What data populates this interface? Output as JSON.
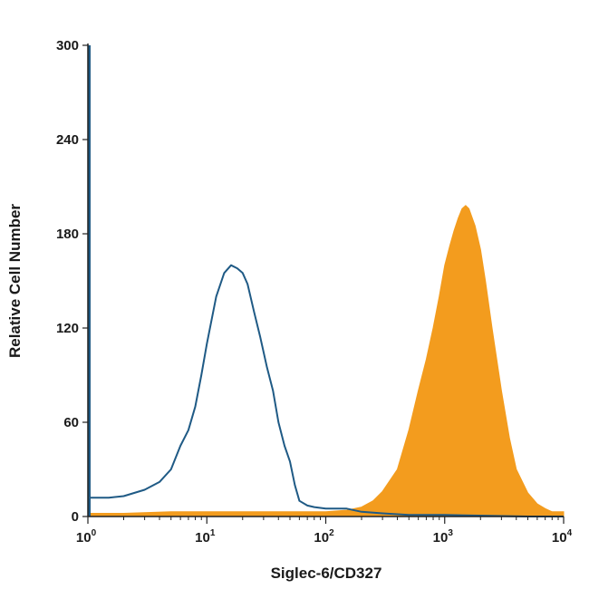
{
  "chart_data": {
    "type": "area",
    "title": "",
    "xlabel": "Siglec-6/CD327",
    "ylabel": "Relative Cell Number",
    "xscale": "log",
    "xlim": [
      1,
      10000
    ],
    "ylim": [
      0,
      300
    ],
    "grid": false,
    "legend": "none",
    "x_ticks": [
      {
        "value": 1,
        "base": "10",
        "exp": "0"
      },
      {
        "value": 10,
        "base": "10",
        "exp": "1"
      },
      {
        "value": 100,
        "base": "10",
        "exp": "2"
      },
      {
        "value": 1000,
        "base": "10",
        "exp": "3"
      },
      {
        "value": 10000,
        "base": "10",
        "exp": "4"
      }
    ],
    "y_ticks": [
      "0",
      "60",
      "120",
      "180",
      "240",
      "300"
    ],
    "series": [
      {
        "style": "filled",
        "color": "#f39c1e",
        "x": [
          1,
          2,
          5,
          10,
          30,
          100,
          150,
          200,
          250,
          300,
          400,
          500,
          600,
          700,
          800,
          900,
          1000,
          1100,
          1200,
          1300,
          1400,
          1500,
          1600,
          1800,
          2000,
          2200,
          2500,
          3000,
          3500,
          4000,
          5000,
          6000,
          7000,
          8000,
          10000
        ],
        "y": [
          2,
          2,
          3,
          3,
          3,
          3,
          4,
          6,
          10,
          16,
          30,
          55,
          80,
          100,
          120,
          140,
          160,
          172,
          182,
          190,
          196,
          198,
          196,
          185,
          170,
          150,
          120,
          80,
          50,
          30,
          15,
          8,
          5,
          3,
          3
        ]
      },
      {
        "style": "outline",
        "color": "#1f5a85",
        "x": [
          1,
          1.5,
          2,
          3,
          4,
          5,
          6,
          7,
          8,
          9,
          10,
          12,
          14,
          16,
          18,
          20,
          22,
          25,
          28,
          32,
          36,
          40,
          45,
          50,
          55,
          60,
          70,
          80,
          100,
          150,
          200,
          300,
          500,
          1000,
          5000,
          10000
        ],
        "y": [
          12,
          12,
          13,
          17,
          22,
          30,
          45,
          55,
          70,
          90,
          110,
          140,
          155,
          160,
          158,
          155,
          148,
          130,
          115,
          95,
          80,
          60,
          45,
          35,
          20,
          10,
          7,
          6,
          5,
          5,
          3,
          2,
          1,
          1,
          0,
          0
        ]
      }
    ]
  }
}
